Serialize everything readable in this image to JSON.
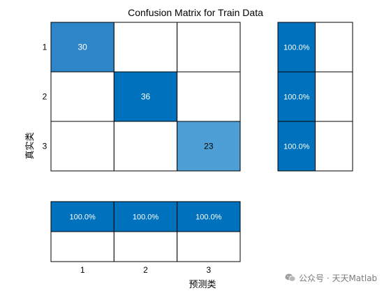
{
  "chart_data": {
    "type": "heatmap",
    "title": "Confusion Matrix for Train Data",
    "xlabel": "预测类",
    "ylabel": "真实类",
    "classes": [
      "1",
      "2",
      "3"
    ],
    "matrix": [
      [
        30,
        0,
        0
      ],
      [
        0,
        36,
        0
      ],
      [
        0,
        0,
        23
      ]
    ],
    "row_summary": [
      [
        "100.0%",
        ""
      ],
      [
        "100.0%",
        ""
      ],
      [
        "100.0%",
        ""
      ]
    ],
    "column_summary": [
      [
        "100.0%",
        "100.0%",
        "100.0%"
      ],
      [
        "",
        "",
        ""
      ]
    ],
    "colors": {
      "strong": "#0072BD",
      "medium": "#2E86C8",
      "light": "#4D9FD6",
      "empty": "#FFFFFF",
      "grid": "#000000",
      "text_dark": "#000000",
      "text_light": "#FFFFFF"
    }
  },
  "watermark": {
    "text": "公众号 · 天天Matlab",
    "icon": "wechat-icon"
  }
}
